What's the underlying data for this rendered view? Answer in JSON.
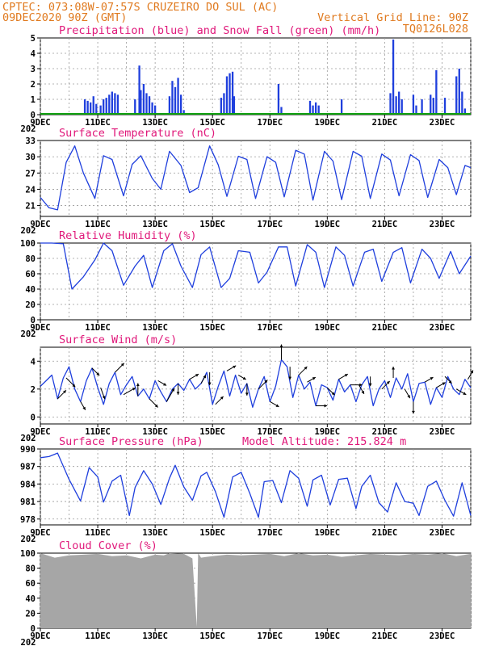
{
  "header": {
    "line1": "CPTEC:   073:08W-07:57S  CRUZEIRO DO SUL (AC)",
    "date": "09DEC2020 90Z (GMT)",
    "grid_note": "Vertical Grid Line: 90Z",
    "code": "TQ0126L028"
  },
  "colors": {
    "header": "#e07a1f",
    "title": "#e0187a",
    "line": "#1f3fdd",
    "bar": "#1f3fdd",
    "snow": "#10a010",
    "cloud": "#a6a6a6",
    "arrow": "#000000"
  },
  "x_axis": {
    "start_day": 9,
    "end_day": 24,
    "days": 15,
    "ticks": [
      "9DEC",
      "11DEC",
      "13DEC",
      "15DEC",
      "17DEC",
      "19DEC",
      "21DEC",
      "23DEC"
    ],
    "year_label": "202"
  },
  "chart_data": [
    {
      "id": "precip",
      "type": "bar",
      "title": "Precipitation (blue) and Snow Fall (green) (mm/h)",
      "ylim": [
        0,
        5
      ],
      "yticks": [
        "0",
        "1",
        "2",
        "3",
        "4",
        "5"
      ],
      "x": [
        10.55,
        10.65,
        10.75,
        10.85,
        10.95,
        11.1,
        11.2,
        11.3,
        11.4,
        11.5,
        11.6,
        11.7,
        12.3,
        12.5,
        12.6,
        12.7,
        12.8,
        12.9,
        13.0,
        12.45,
        13.5,
        13.6,
        13.7,
        13.8,
        13.9,
        14.0,
        15.3,
        15.4,
        15.5,
        15.6,
        15.7,
        15.75,
        17.3,
        17.4,
        18.4,
        18.5,
        18.6,
        18.7,
        19.5,
        21.2,
        21.3,
        21.4,
        21.5,
        21.6,
        22.0,
        22.1,
        22.3,
        22.6,
        22.7,
        22.8,
        23.1,
        23.5,
        23.6,
        23.7,
        23.8
      ],
      "values": [
        1.0,
        0.9,
        0.8,
        1.2,
        0.7,
        0.6,
        1.0,
        1.1,
        1.3,
        1.5,
        1.4,
        1.3,
        1.0,
        1.6,
        2.0,
        1.4,
        1.2,
        0.8,
        0.6,
        3.2,
        1.2,
        2.2,
        1.8,
        2.4,
        1.3,
        0.3,
        1.1,
        1.4,
        2.5,
        2.7,
        2.8,
        1.2,
        2.0,
        0.5,
        0.9,
        0.6,
        0.8,
        0.6,
        1.0,
        1.4,
        4.9,
        1.2,
        1.5,
        1.0,
        1.3,
        0.6,
        1.0,
        1.3,
        1.1,
        2.9,
        1.1,
        2.5,
        3.0,
        1.5,
        0.4
      ],
      "snow": 0
    },
    {
      "id": "temp",
      "type": "line",
      "title": "Surface Temperature (nC)",
      "ylim": [
        19,
        33
      ],
      "yticks": [
        "21",
        "24",
        "27",
        "30",
        "33"
      ],
      "x": [
        9.0,
        9.3,
        9.6,
        9.9,
        10.2,
        10.5,
        10.9,
        11.2,
        11.5,
        11.9,
        12.2,
        12.5,
        12.9,
        13.2,
        13.5,
        13.9,
        14.2,
        14.5,
        14.9,
        15.2,
        15.5,
        15.9,
        16.2,
        16.5,
        16.9,
        17.2,
        17.5,
        17.9,
        18.2,
        18.5,
        18.9,
        19.2,
        19.5,
        19.9,
        20.2,
        20.5,
        20.9,
        21.2,
        21.5,
        21.9,
        22.2,
        22.5,
        22.9,
        23.2,
        23.5,
        23.8,
        24.0
      ],
      "values": [
        22.5,
        20.6,
        20.2,
        29.0,
        32.0,
        27.0,
        22.3,
        30.2,
        29.5,
        22.8,
        28.6,
        30.2,
        26.0,
        24.0,
        31.0,
        28.4,
        23.4,
        24.3,
        32.0,
        28.5,
        22.7,
        30.1,
        29.5,
        22.3,
        30.0,
        29.0,
        22.6,
        31.2,
        30.5,
        22.0,
        31.0,
        29.2,
        22.1,
        31.0,
        30.1,
        22.3,
        30.5,
        29.4,
        22.8,
        30.4,
        29.3,
        22.5,
        29.5,
        28.0,
        23.0,
        28.4,
        28.0
      ]
    },
    {
      "id": "rh",
      "type": "line",
      "title": "Relative Humidity (%)",
      "ylim": [
        0,
        100
      ],
      "yticks": [
        "0",
        "20",
        "40",
        "60",
        "80",
        "100"
      ],
      "x": [
        9.0,
        9.4,
        9.8,
        10.1,
        10.5,
        10.9,
        11.2,
        11.5,
        11.9,
        12.3,
        12.6,
        12.9,
        13.3,
        13.6,
        13.9,
        14.3,
        14.6,
        14.9,
        15.3,
        15.6,
        15.9,
        16.3,
        16.6,
        16.9,
        17.3,
        17.6,
        17.9,
        18.3,
        18.6,
        18.9,
        19.3,
        19.6,
        19.9,
        20.3,
        20.6,
        20.9,
        21.3,
        21.6,
        21.9,
        22.3,
        22.6,
        22.9,
        23.3,
        23.6,
        24.0
      ],
      "values": [
        100,
        100,
        99,
        40,
        56,
        78,
        100,
        90,
        45,
        70,
        84,
        42,
        90,
        99,
        70,
        42,
        85,
        95,
        42,
        54,
        90,
        88,
        48,
        62,
        95,
        95,
        44,
        98,
        88,
        42,
        95,
        84,
        44,
        88,
        92,
        50,
        88,
        94,
        48,
        92,
        80,
        54,
        89,
        60,
        83
      ]
    },
    {
      "id": "wind",
      "type": "line",
      "title": "Surface Wind (m/s)",
      "ylim": [
        -0.5,
        5.0
      ],
      "yticks": [
        "0",
        "2",
        "4"
      ],
      "x": [
        9.0,
        9.2,
        9.4,
        9.6,
        9.8,
        10.0,
        10.2,
        10.4,
        10.6,
        10.8,
        11.0,
        11.2,
        11.4,
        11.6,
        11.8,
        12.0,
        12.2,
        12.4,
        12.6,
        12.8,
        13.0,
        13.2,
        13.4,
        13.6,
        13.8,
        14.0,
        14.2,
        14.4,
        14.6,
        14.8,
        15.0,
        15.2,
        15.4,
        15.6,
        15.8,
        16.0,
        16.2,
        16.4,
        16.6,
        16.8,
        17.0,
        17.2,
        17.4,
        17.6,
        17.8,
        18.0,
        18.2,
        18.4,
        18.6,
        18.8,
        19.0,
        19.2,
        19.4,
        19.6,
        19.8,
        20.0,
        20.2,
        20.4,
        20.6,
        20.8,
        21.0,
        21.2,
        21.4,
        21.6,
        21.8,
        22.0,
        22.2,
        22.4,
        22.6,
        22.8,
        23.0,
        23.2,
        23.4,
        23.6,
        23.8,
        24.0
      ],
      "values": [
        2.2,
        2.6,
        3.0,
        1.3,
        2.8,
        3.6,
        2.0,
        1.1,
        2.6,
        3.5,
        2.1,
        0.9,
        2.4,
        3.2,
        1.6,
        2.3,
        2.9,
        1.5,
        2.0,
        1.3,
        2.6,
        1.8,
        1.1,
        2.0,
        2.4,
        1.9,
        2.7,
        2.0,
        2.4,
        3.2,
        0.9,
        2.2,
        3.3,
        1.5,
        3.0,
        1.7,
        2.4,
        0.7,
        2.0,
        2.9,
        1.1,
        2.2,
        4.1,
        3.6,
        1.4,
        3.0,
        2.0,
        2.5,
        0.8,
        2.3,
        2.1,
        1.2,
        2.7,
        1.8,
        2.3,
        1.1,
        2.3,
        2.9,
        0.8,
        2.0,
        2.6,
        1.4,
        2.8,
        2.0,
        3.1,
        1.1,
        2.4,
        2.5,
        0.9,
        2.1,
        1.4,
        2.9,
        2.0,
        1.6,
        2.7,
        2.1
      ],
      "arrows": {
        "x": [
          9.6,
          9.9,
          10.4,
          10.8,
          11.1,
          11.6,
          11.9,
          12.4,
          12.8,
          13.1,
          13.4,
          13.8,
          14.2,
          14.6,
          14.9,
          15.1,
          15.5,
          15.9,
          16.2,
          16.6,
          17.0,
          17.4,
          17.7,
          18.0,
          18.3,
          18.6,
          19.0,
          19.4,
          19.8,
          20.1,
          20.5,
          20.9,
          21.3,
          21.7,
          22.0,
          22.4,
          22.8,
          23.1,
          23.5,
          23.9
        ],
        "angles": [
          45,
          -45,
          -60,
          -45,
          -70,
          45,
          30,
          90,
          -45,
          -30,
          60,
          -90,
          30,
          60,
          -90,
          45,
          30,
          -30,
          -90,
          45,
          -30,
          90,
          -90,
          45,
          30,
          0,
          -45,
          30,
          0,
          -60,
          -90,
          45,
          90,
          -60,
          -90,
          30,
          30,
          -45,
          -30,
          60
        ],
        "len": [
          1.5,
          1.6,
          1.2,
          1.3,
          1.5,
          1.6,
          1.7,
          1.6,
          1.5,
          1.2,
          1.9,
          1.4,
          1.3,
          1.2,
          1.6,
          1.4,
          1.3,
          1.1,
          1.5,
          1.6,
          1.3,
          1.9,
          1.6,
          1.5,
          1.2,
          1.4,
          1.3,
          1.3,
          1.5,
          1.3,
          1.2,
          1.4,
          1.4,
          1.3,
          1.5,
          1.2,
          1.3,
          1.2,
          1.4,
          1.3
        ]
      }
    },
    {
      "id": "pres",
      "type": "line",
      "title": "Surface Pressure (hPa)",
      "subtitle": "Model Altitude: 215.824 m",
      "ylim": [
        977,
        990
      ],
      "yticks": [
        "978",
        "981",
        "984",
        "987",
        "990"
      ],
      "x": [
        9.0,
        9.3,
        9.6,
        10.0,
        10.4,
        10.7,
        11.0,
        11.2,
        11.5,
        11.8,
        12.1,
        12.3,
        12.6,
        12.9,
        13.2,
        13.5,
        13.7,
        14.0,
        14.3,
        14.6,
        14.8,
        15.1,
        15.4,
        15.7,
        16.0,
        16.3,
        16.6,
        16.8,
        17.1,
        17.4,
        17.7,
        18.0,
        18.3,
        18.5,
        18.8,
        19.1,
        19.4,
        19.7,
        20.0,
        20.2,
        20.5,
        20.8,
        21.1,
        21.4,
        21.7,
        22.0,
        22.2,
        22.5,
        22.8,
        23.1,
        23.4,
        23.7,
        24.0
      ],
      "values": [
        988.5,
        988.7,
        989.3,
        984.8,
        981.1,
        986.8,
        985.2,
        980.9,
        984.5,
        985.5,
        978.6,
        983.4,
        986.3,
        984.0,
        980.5,
        985.0,
        987.2,
        983.5,
        981.2,
        985.4,
        986.0,
        982.7,
        978.3,
        985.2,
        986.0,
        982.4,
        978.3,
        984.4,
        984.6,
        980.8,
        986.3,
        985.0,
        980.2,
        984.7,
        985.5,
        980.4,
        984.8,
        985.0,
        979.8,
        983.6,
        985.5,
        980.8,
        979.2,
        984.2,
        981.0,
        980.7,
        978.6,
        983.6,
        984.5,
        981.2,
        978.5,
        984.2,
        978.6
      ]
    },
    {
      "id": "cloud",
      "type": "area",
      "title": "Cloud Cover (%)",
      "ylim": [
        0,
        100
      ],
      "yticks": [
        "0",
        "20",
        "40",
        "60",
        "80",
        "100"
      ],
      "x": [
        9.0,
        9.5,
        10.0,
        10.5,
        11.0,
        11.5,
        12.0,
        12.5,
        13.0,
        13.3,
        13.5,
        14.0,
        14.3,
        14.45,
        14.5,
        14.6,
        15.0,
        15.5,
        16.0,
        16.5,
        17.0,
        17.5,
        18.0,
        18.5,
        19.0,
        19.5,
        20.0,
        20.5,
        21.0,
        21.5,
        22.0,
        22.5,
        23.0,
        23.5,
        24.0
      ],
      "values": [
        100,
        94,
        97,
        98,
        99,
        96,
        97,
        93,
        98,
        97,
        100,
        99,
        93,
        2,
        100,
        94,
        96,
        98,
        97,
        98,
        99,
        96,
        100,
        97,
        98,
        95,
        97,
        99,
        98,
        97,
        99,
        98,
        100,
        96,
        99
      ]
    }
  ]
}
